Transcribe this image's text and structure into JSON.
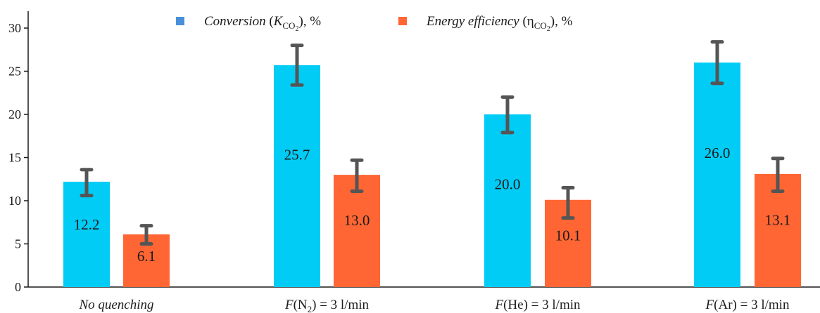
{
  "chart_data": {
    "type": "bar",
    "categories": [
      "No quenching",
      "F(N2) = 3 l/min",
      "F(He) = 3 l/min",
      "F(Ar) = 3 l/min"
    ],
    "category_labels": [
      {
        "italic": "No quenching",
        "rest": "",
        "sub": "",
        "tail": ""
      },
      {
        "italic": "F",
        "rest": "(N",
        "sub": "2",
        "tail": ") = 3 l/min"
      },
      {
        "italic": "F",
        "rest": "(He) = 3 l/min",
        "sub": "",
        "tail": ""
      },
      {
        "italic": "F",
        "rest": "(Ar) = 3 l/min",
        "sub": "",
        "tail": ""
      }
    ],
    "series": [
      {
        "name": "Conversion (KCO2), %",
        "legend": {
          "italic": "Conversion",
          "pre": " (",
          "var": "K",
          "sub": "CO",
          "sub2": "2",
          "post": "), %"
        },
        "color": "#00ccf5",
        "values": [
          12.2,
          25.7,
          20.0,
          26.0
        ],
        "labels": [
          "12.2",
          "25.7",
          "20.0",
          "26.0"
        ],
        "error_low": [
          10.6,
          23.4,
          17.9,
          23.6
        ],
        "error_high": [
          13.6,
          28.0,
          22.0,
          28.4
        ]
      },
      {
        "name": "Energy efficiency (ηCO2), %",
        "legend": {
          "italic": "Energy efficiency",
          "pre": " (",
          "var": "η",
          "sub": "CO",
          "sub2": "2",
          "post": "), %"
        },
        "color": "#ff6633",
        "values": [
          6.1,
          13.0,
          10.1,
          13.1
        ],
        "labels": [
          "6.1",
          "13.0",
          "10.1",
          "13.1"
        ],
        "error_low": [
          5.0,
          11.1,
          8.0,
          11.1
        ],
        "error_high": [
          7.1,
          14.7,
          11.5,
          14.9
        ]
      }
    ],
    "yticks": [
      "0",
      "5",
      "10",
      "15",
      "20",
      "25",
      "30"
    ],
    "ylim": [
      0,
      32
    ],
    "legend_position": "top-center",
    "grid": false,
    "legend_marker_color": "#4a90d9",
    "error_bar_color": "#555555"
  }
}
